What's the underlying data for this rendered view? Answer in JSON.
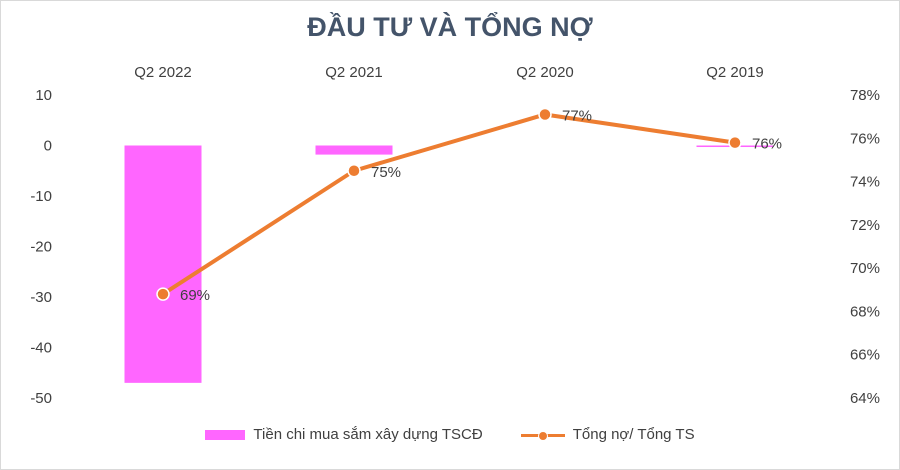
{
  "chart_data": {
    "type": "bar+line",
    "title": "ĐẦU TƯ VÀ TỔNG NỢ",
    "categories": [
      "Q2 2022",
      "Q2 2021",
      "Q2 2020",
      "Q2 2019"
    ],
    "y_left": {
      "ticks": [
        "10",
        "0",
        "-10",
        "-20",
        "-30",
        "-40",
        "-50"
      ],
      "ylim": [
        -50,
        10
      ]
    },
    "y_right": {
      "ticks": [
        "78%",
        "76%",
        "74%",
        "72%",
        "70%",
        "68%",
        "66%",
        "64%"
      ],
      "ylim": [
        64,
        78
      ],
      "unit": "%"
    },
    "series": [
      {
        "name": "Tiền chi mua sắm xây dựng TSCĐ",
        "type": "bar",
        "axis": "left",
        "values": [
          -47,
          -1.8,
          0,
          -0.3
        ],
        "color": "#ff66ff"
      },
      {
        "name": "Tổng nợ/ Tổng TS",
        "type": "line",
        "axis": "right",
        "values": [
          68.8,
          74.5,
          77.1,
          75.8
        ],
        "labels": [
          "69%",
          "75%",
          "77%",
          "76%"
        ],
        "color": "#ed7d31"
      }
    ],
    "grid": false,
    "legend_position": "bottom"
  }
}
